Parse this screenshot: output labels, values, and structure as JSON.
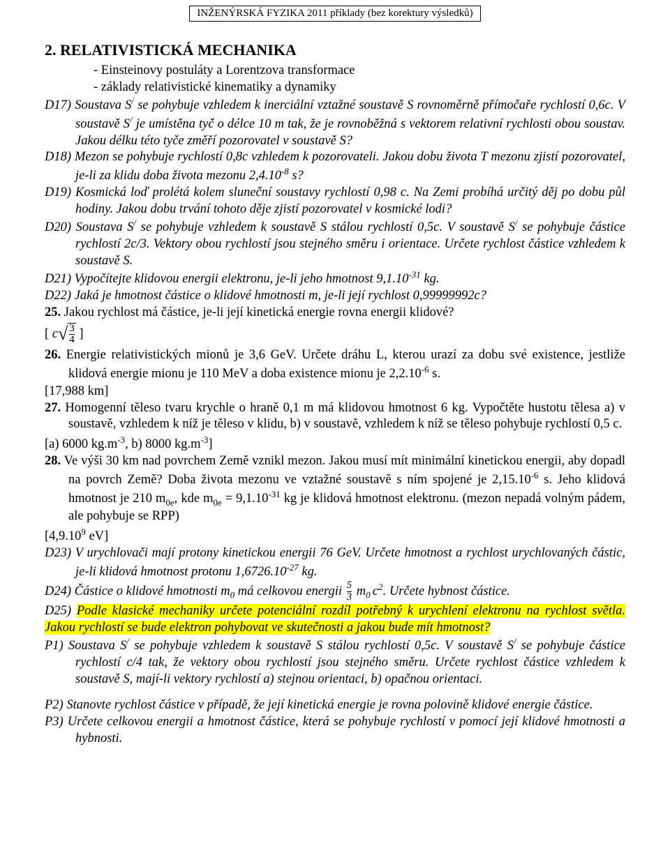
{
  "header": "INŽENÝRSKÁ FYZIKA 2011 příklady  (bez korektury výsledků)",
  "chapter": "2. RELATIVISTICKÁ MECHANIKA",
  "bullets": [
    "-   Einsteinovy postuláty a Lorentzova transformace",
    "-   základy relativistické kinematiky a dynamiky"
  ],
  "d17": "D17) Soustava S<sup>/</sup> se pohybuje vzhledem k inerciální vztažné soustavě S rovnoměrně přímočaře rychlostí 0,6c. V soustavě S<sup>/</sup> je umístěna tyč o délce 10 m tak, že je rovnoběžná s vektorem relativní rychlosti obou soustav. Jakou délku této tyče změří pozorovatel v soustavě S?",
  "d18": "D18) Mezon se pohybuje rychlostí 0,8c vzhledem k pozorovateli. Jakou dobu života T mezonu zjistí pozorovatel, je-li za klidu doba života mezonu 2,4.10<sup>-8</sup> s?",
  "d19": "D19) Kosmická loď prolétá kolem sluneční soustavy rychlostí 0,98 c. Na Zemi probíhá určitý děj po dobu půl hodiny. Jakou dobu trvání tohoto děje zjistí pozorovatel v kosmické lodi?",
  "d20": "D20)  Soustava S<sup>/</sup> se pohybuje vzhledem k soustavě S stálou rychlostí 0,5c. V soustavě S<sup>/</sup> se pohybuje částice rychlostí 2c/3. Vektory obou rychlostí jsou stejného směru i orientace. Určete rychlost částice vzhledem k soustavě S.",
  "d21": "D21) Vypočítejte klidovou energii elektronu, je-li jeho hmotnost 9,1.10<sup>-31</sup> kg.",
  "d22": "D22) Jaká je hmotnost částice o klidové hmotnosti m, je-li její rychlost 0,99999992c?",
  "p25": "<span class=\"bold\">25.</span> Jakou rychlost má částice, je-li její kinetická energie rovna energii klidové?",
  "ans25_c": "c",
  "ans25_num": "3",
  "ans25_den": "4",
  "p26": "<span class=\"bold\">26.</span> Energie relativistických mionů je 3,6 GeV. Určete dráhu L, kterou urazí za dobu své existence, jestliže klidová energie mionu je 110 MeV a doba existence mionu je 2,2.10<sup>-6</sup> s.",
  "ans26": "[17,988 km]",
  "p27": "<span class=\"bold\">27.</span> Homogenní těleso tvaru krychle o hraně 0,1 m má klidovou hmotnost 6 kg. Vypočtěte hustotu tělesa a) v soustavě, vzhledem k níž je těleso v klidu, b) v soustavě, vzhledem k níž se těleso pohybuje rychlostí 0,5 c.",
  "ans27": "[a) 6000 kg.m<sup>-3</sup>, b) 8000 kg.m<sup>-3</sup>]",
  "p28": "<span class=\"bold\">28.</span> Ve výši 30 km nad povrchem Země vznikl mezon. Jakou musí mít minimální kinetickou energii, aby dopadl na povrch Země? Doba života mezonu ve vztažné soustavě s ním spojené je 2,15.10<sup>-6</sup> s. Jeho klidová hmotnost je 210 m<sub>0e</sub>, kde m<sub>0e</sub> = 9,1.10<sup>-31</sup> kg je klidová hmotnost elektronu. (mezon nepadá volným pádem, ale pohybuje se RPP)",
  "ans28": "[4,9.10<sup>9</sup> eV]",
  "d23": "D23) V urychlovači mají protony kinetickou energii 76 GeV. Určete hmotnost a rychlost urychlovaných částic, je-li klidová hmotnost protonu 1,6726.10<sup>-27</sup> kg.",
  "d24a": "D24) Částice o klidové hmotnosti m<sub>0</sub>  má celkovou energii",
  "d24_num": "5",
  "d24_den": "3",
  "d24b": "m<sub>0 </sub>c<sup>2</sup>.  Určete hybnost částice.",
  "d25": "D25) <span class=\"hl\">Podle klasické mechaniky určete potenciální rozdíl potřebný k urychlení elektronu na rychlost světla. Jakou rychlostí se bude elektron pohybovat ve skutečnosti a jakou bude mít hmotnost?</span>",
  "p1": "P1) Soustava S<sup>/</sup> se pohybuje vzhledem k soustavě S stálou rychlostí 0,5c. V soustavě S<sup>/</sup> se pohybuje částice rychlostí c/4 tak, že vektory obou rychlostí jsou stejného směru. Určete rychlost částice vzhledem k soustavě S, mají-li vektory rychlostí a) stejnou orientaci, b) opačnou orientaci.",
  "p2": "P2) Stanovte rychlost částice v případě, že její kinetická energie je rovna polovině klidové energie částice.",
  "p3": "P3) Určete celkovou energii a hmotnost částice, která se pohybuje rychlostí v pomocí její klidové hmotnosti a hybnosti."
}
